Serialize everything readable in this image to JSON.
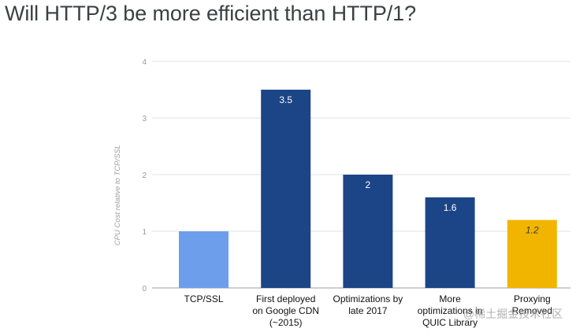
{
  "title": "Will HTTP/3 be more efficient than HTTP/1?",
  "watermark": "@稀土掘金技术社区",
  "chart_data": {
    "type": "bar",
    "ylabel": "CPU Cost relative to TCP/SSL",
    "xlabel": "",
    "ylim": [
      0,
      4
    ],
    "yticks": [
      0,
      1,
      2,
      3,
      4
    ],
    "grid": true,
    "categories": [
      [
        "TCP/SSL"
      ],
      [
        "First deployed",
        "on Google CDN",
        "(~2015)"
      ],
      [
        "Optimizations by",
        "late 2017"
      ],
      [
        "More",
        "optimizations in",
        "QUIC Library"
      ],
      [
        "Proxying",
        "Removed"
      ]
    ],
    "values": [
      1,
      3.5,
      2,
      1.6,
      1.2
    ],
    "data_labels": [
      "",
      "3.5",
      "2",
      "1.6",
      "1.2"
    ],
    "colors": [
      "#6d9eeb",
      "#1c4587",
      "#1c4587",
      "#1c4587",
      "#f1b500"
    ],
    "label_colors": [
      "#ffffff",
      "#ffffff",
      "#ffffff",
      "#ffffff",
      "#3c3c3c"
    ],
    "colors_meta": {
      "grid": "#e0e0e0",
      "tick_text": "#999999",
      "category_text": "#111111",
      "title_text": "#3c4043"
    }
  }
}
